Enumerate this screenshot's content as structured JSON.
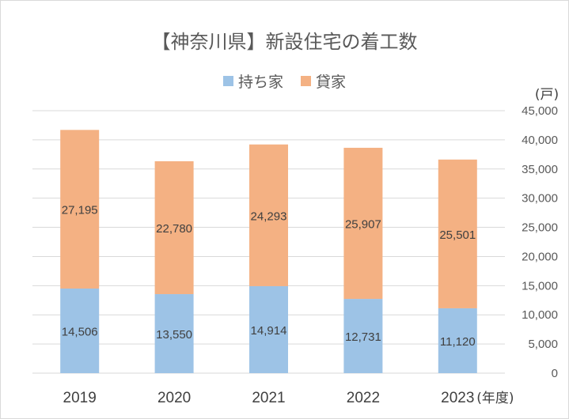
{
  "chart_data": {
    "type": "bar",
    "stacked": true,
    "title": "【神奈川県】新設住宅の着工数",
    "y_unit": "(戸)",
    "x_unit": "(年度)",
    "categories": [
      "2019",
      "2020",
      "2021",
      "2022",
      "2023"
    ],
    "series": [
      {
        "name": "持ち家",
        "values": [
          14506,
          13550,
          14914,
          12731,
          11120
        ],
        "labels": [
          "14,506",
          "13,550",
          "14,914",
          "12,731",
          "11,120"
        ],
        "color": "#9dc3e6"
      },
      {
        "name": "貸家",
        "values": [
          27195,
          22780,
          24293,
          25907,
          25501
        ],
        "labels": [
          "27,195",
          "22,780",
          "24,293",
          "25,907",
          "25,501"
        ],
        "color": "#f4b183"
      }
    ],
    "ylim": [
      0,
      45000
    ],
    "yticks": [
      0,
      5000,
      10000,
      15000,
      20000,
      25000,
      30000,
      35000,
      40000,
      45000
    ],
    "ytick_labels": [
      "0",
      "5,000",
      "10,000",
      "15,000",
      "20,000",
      "25,000",
      "30,000",
      "35,000",
      "40,000",
      "45,000"
    ],
    "gridlines": true,
    "legend_position": "top"
  },
  "colors": {
    "gridline": "#d9d9d9",
    "text": "#595959"
  }
}
